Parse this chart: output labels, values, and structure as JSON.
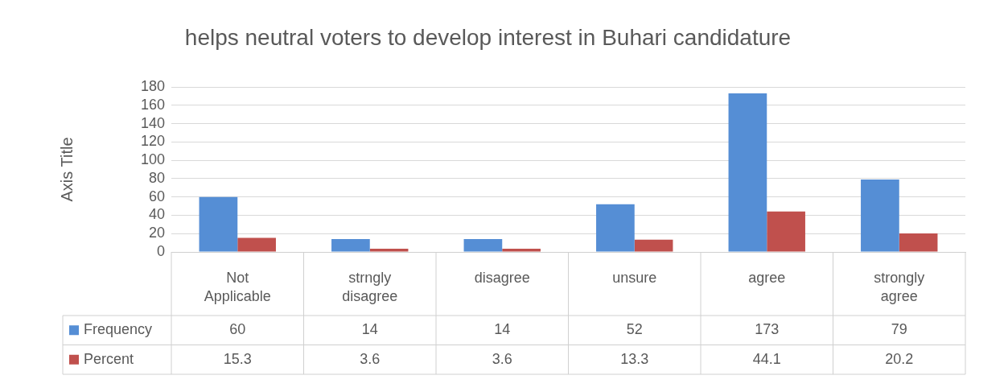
{
  "chart_data": {
    "type": "bar",
    "title": "helps neutral voters to develop interest in Buhari candidature",
    "ylabel": "Axis Title",
    "categories": [
      "Not Applicable",
      "strngly disagree",
      "disagree",
      "unsure",
      "agree",
      "strongly agree"
    ],
    "series": [
      {
        "name": "Frequency",
        "color": "#558ed5",
        "values": [
          60,
          14,
          14,
          52,
          173,
          79
        ]
      },
      {
        "name": "Percent",
        "color": "#c0504d",
        "values": [
          15.3,
          3.6,
          3.6,
          13.3,
          44.1,
          20.2
        ]
      }
    ],
    "ylim": [
      0,
      180
    ],
    "yticks": [
      0,
      20,
      40,
      60,
      80,
      100,
      120,
      140,
      160,
      180
    ],
    "grid": "y",
    "legend": "bottom",
    "data_labels": true
  }
}
